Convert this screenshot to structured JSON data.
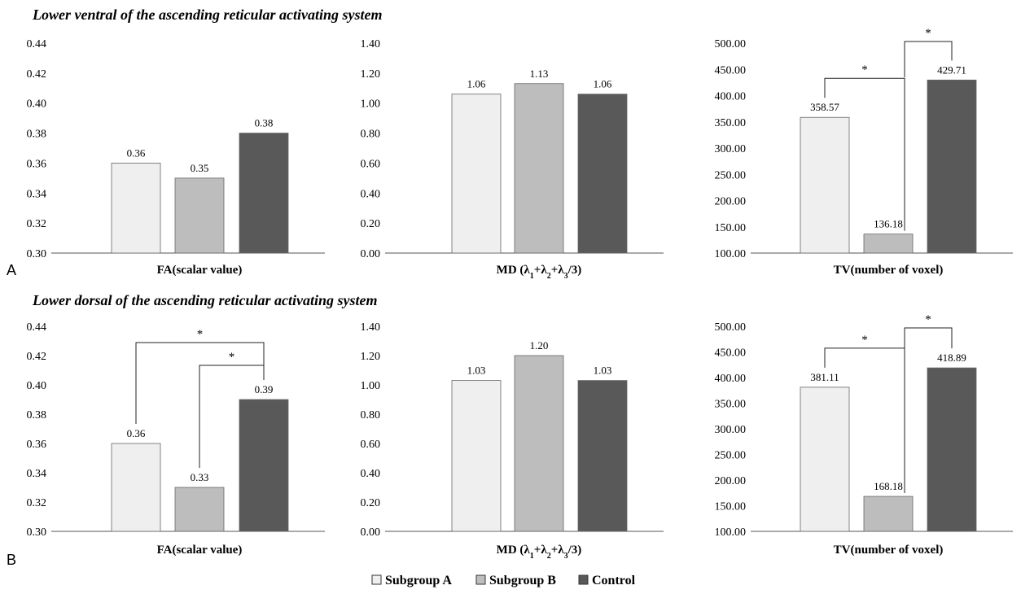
{
  "panels": [
    {
      "letter": "A",
      "title": "Lower ventral of the ascending reticular activating system"
    },
    {
      "letter": "B",
      "title": "Lower dorsal of the ascending reticular activating system"
    }
  ],
  "legend": [
    {
      "label": "Subgroup A",
      "color": "#efefef"
    },
    {
      "label": "Subgroup B",
      "color": "#bdbdbd"
    },
    {
      "label": "Control",
      "color": "#595959"
    }
  ],
  "chart_data": [
    {
      "type": "bar",
      "panel": "A",
      "xlabel": "FA(scalar value)",
      "series": [
        "Subgroup A",
        "Subgroup B",
        "Control"
      ],
      "values": [
        0.36,
        0.35,
        0.38
      ],
      "value_labels": [
        "0.36",
        "0.35",
        "0.38"
      ],
      "ylim": [
        0.3,
        0.44
      ],
      "yticks": [
        "0.30",
        "0.32",
        "0.34",
        "0.36",
        "0.38",
        "0.40",
        "0.42",
        "0.44"
      ],
      "significance": []
    },
    {
      "type": "bar",
      "panel": "A",
      "xlabel": "MD (λ1+λ2+λ3/3)",
      "series": [
        "Subgroup A",
        "Subgroup B",
        "Control"
      ],
      "values": [
        1.06,
        1.13,
        1.06
      ],
      "value_labels": [
        "1.06",
        "1.13",
        "1.06"
      ],
      "ylim": [
        0.0,
        1.4
      ],
      "yticks": [
        "0.00",
        "0.20",
        "0.40",
        "0.60",
        "0.80",
        "1.00",
        "1.20",
        "1.40"
      ],
      "significance": []
    },
    {
      "type": "bar",
      "panel": "A",
      "xlabel": "TV(number of voxel)",
      "series": [
        "Subgroup A",
        "Subgroup B",
        "Control"
      ],
      "values": [
        358.57,
        136.18,
        429.71
      ],
      "value_labels": [
        "358.57",
        "136.18",
        "429.71"
      ],
      "ylim": [
        100,
        500
      ],
      "yticks": [
        "100.00",
        "150.00",
        "200.00",
        "250.00",
        "300.00",
        "350.00",
        "400.00",
        "450.00",
        "500.00"
      ],
      "significance": [
        {
          "from": "Subgroup A",
          "to": "Subgroup B",
          "label": "*"
        },
        {
          "from": "Subgroup B",
          "to": "Control",
          "label": "*"
        }
      ]
    },
    {
      "type": "bar",
      "panel": "B",
      "xlabel": "FA(scalar value)",
      "series": [
        "Subgroup A",
        "Subgroup B",
        "Control"
      ],
      "values": [
        0.36,
        0.33,
        0.39
      ],
      "value_labels": [
        "0.36",
        "0.33",
        "0.39"
      ],
      "ylim": [
        0.3,
        0.44
      ],
      "yticks": [
        "0.30",
        "0.32",
        "0.34",
        "0.36",
        "0.38",
        "0.40",
        "0.42",
        "0.44"
      ],
      "significance": [
        {
          "from": "Subgroup A",
          "to": "Control",
          "label": "*"
        },
        {
          "from": "Subgroup B",
          "to": "Control",
          "label": "*"
        }
      ]
    },
    {
      "type": "bar",
      "panel": "B",
      "xlabel": "MD (λ1+λ2+λ3/3)",
      "series": [
        "Subgroup A",
        "Subgroup B",
        "Control"
      ],
      "values": [
        1.03,
        1.2,
        1.03
      ],
      "value_labels": [
        "1.03",
        "1.20",
        "1.03"
      ],
      "ylim": [
        0.0,
        1.4
      ],
      "yticks": [
        "0.00",
        "0.20",
        "0.40",
        "0.60",
        "0.80",
        "1.00",
        "1.20",
        "1.40"
      ],
      "significance": []
    },
    {
      "type": "bar",
      "panel": "B",
      "xlabel": "TV(number of voxel)",
      "series": [
        "Subgroup A",
        "Subgroup B",
        "Control"
      ],
      "values": [
        381.11,
        168.18,
        418.89
      ],
      "value_labels": [
        "381.11",
        "168.18",
        "418.89"
      ],
      "ylim": [
        100,
        500
      ],
      "yticks": [
        "100.00",
        "150.00",
        "200.00",
        "250.00",
        "300.00",
        "350.00",
        "400.00",
        "450.00",
        "500.00"
      ],
      "significance": [
        {
          "from": "Subgroup A",
          "to": "Subgroup B",
          "label": "*"
        },
        {
          "from": "Subgroup B",
          "to": "Control",
          "label": "*"
        }
      ]
    }
  ]
}
